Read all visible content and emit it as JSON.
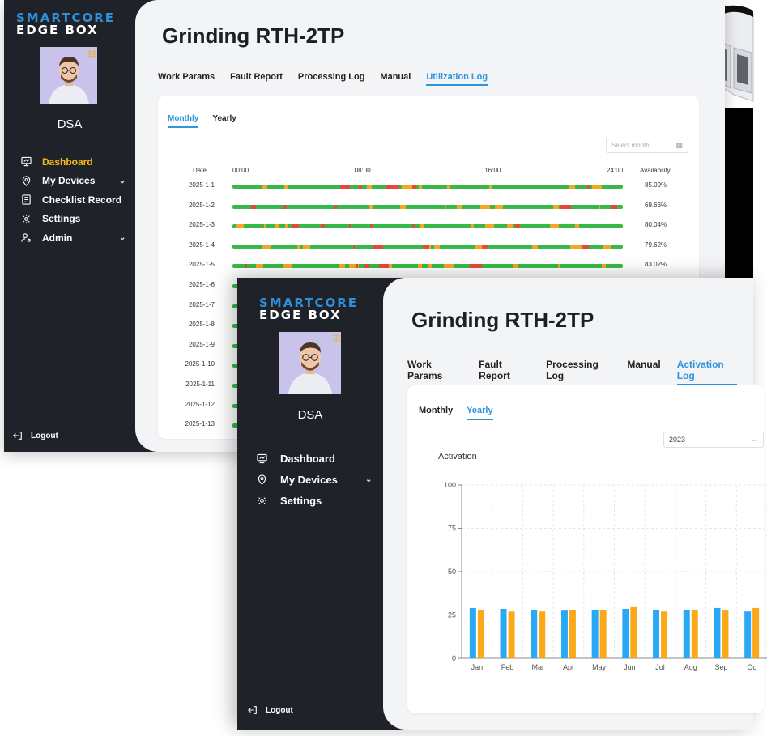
{
  "logo": {
    "line1": "SMARTCORE",
    "line2": "EDGE BOX"
  },
  "user": {
    "name": "DSA"
  },
  "window1": {
    "nav": [
      {
        "label": "Dashboard",
        "icon": "monitor-icon",
        "active": true
      },
      {
        "label": "My Devices",
        "icon": "location-pin-icon",
        "chevron": true
      },
      {
        "label": "Checklist Record",
        "icon": "checklist-icon"
      },
      {
        "label": "Settings",
        "icon": "gear-icon"
      },
      {
        "label": "Admin",
        "icon": "user-gear-icon",
        "chevron": true
      }
    ],
    "logout": "Logout",
    "title": "Grinding RTH-2TP",
    "tabs": [
      "Work Params",
      "Fault Report",
      "Processing Log",
      "Manual",
      "Utilization Log"
    ],
    "active_tab": "Utilization Log",
    "subtabs": [
      "Monthly",
      "Yearly"
    ],
    "active_subtab": "Monthly",
    "select_placeholder": "Select month",
    "headers": {
      "date": "Date",
      "t0": "00:00",
      "t1": "08:00",
      "t2": "16:00",
      "t3": "24:00",
      "availability": "Availability"
    },
    "rows": [
      {
        "date": "2025-1-1",
        "availability": "85.09%"
      },
      {
        "date": "2025-1-2",
        "availability": "69.66%"
      },
      {
        "date": "2025-1-3",
        "availability": "80.04%"
      },
      {
        "date": "2025-1-4",
        "availability": "79.62%"
      },
      {
        "date": "2025-1-5",
        "availability": "83.02%"
      },
      {
        "date": "2025-1-6",
        "availability": ""
      },
      {
        "date": "2025-1-7",
        "availability": ""
      },
      {
        "date": "2025-1-8",
        "availability": ""
      },
      {
        "date": "2025-1-9",
        "availability": ""
      },
      {
        "date": "2025-1-10",
        "availability": ""
      },
      {
        "date": "2025-1-11",
        "availability": ""
      },
      {
        "date": "2025-1-12",
        "availability": ""
      },
      {
        "date": "2025-1-13",
        "availability": ""
      }
    ],
    "status_colors": {
      "running": "#37b94a",
      "idle": "#f5a623",
      "fault": "#e8483b"
    }
  },
  "window2": {
    "nav": [
      {
        "label": "Dashboard",
        "icon": "monitor-icon"
      },
      {
        "label": "My Devices",
        "icon": "location-pin-icon",
        "chevron": true
      },
      {
        "label": "Settings",
        "icon": "gear-icon"
      }
    ],
    "logout": "Logout",
    "title": "Grinding RTH-2TP",
    "tabs": [
      "Work Params",
      "Fault Report",
      "Processing Log",
      "Manual",
      "Activation Log"
    ],
    "active_tab": "Activation Log",
    "subtabs": [
      "Monthly",
      "Yearly"
    ],
    "active_subtab": "Yearly",
    "select_value": "2023",
    "chart_label": "Activation"
  },
  "chart_data": {
    "type": "bar",
    "categories": [
      "Jan",
      "Feb",
      "Mar",
      "Apr",
      "May",
      "Jun",
      "Jul",
      "Aug",
      "Sep",
      "Oc"
    ],
    "series": [
      {
        "values": [
          29,
          28.5,
          28,
          27.5,
          28,
          28.5,
          28,
          28,
          29,
          27
        ],
        "color": "#29a8f5"
      },
      {
        "values": [
          28,
          27,
          27,
          28,
          28,
          29.5,
          27,
          28,
          28,
          29
        ],
        "color": "#fba919"
      }
    ],
    "ylim": [
      0,
      100
    ],
    "yticks": [
      0,
      25,
      50,
      75,
      100
    ],
    "grid": true
  },
  "accent": "#2f95dc",
  "active_nav_color": "#f5b915"
}
